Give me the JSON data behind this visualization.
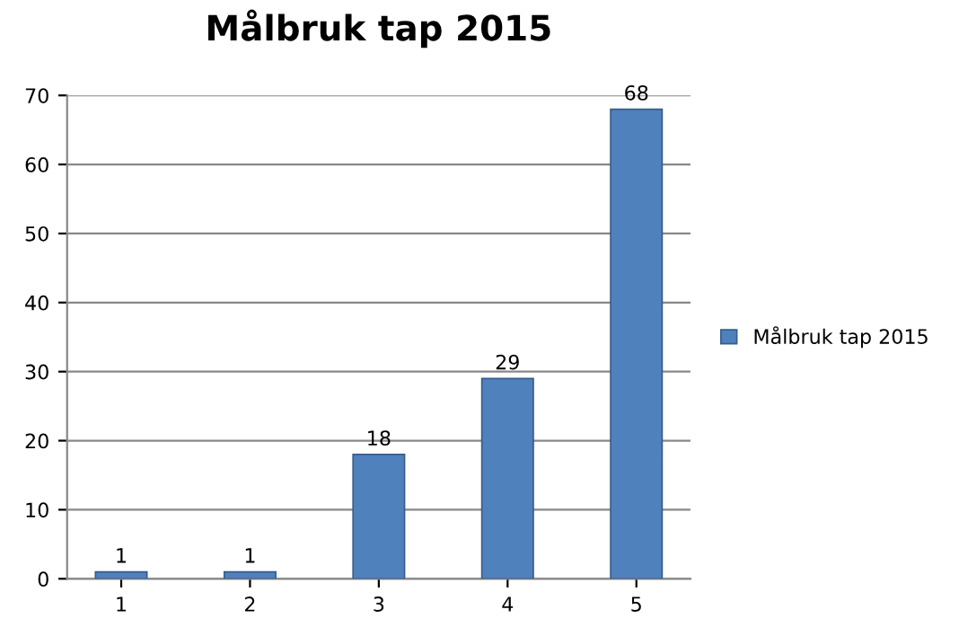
{
  "chart_data": {
    "type": "bar",
    "title": "Målbruk tap 2015",
    "categories": [
      "1",
      "2",
      "3",
      "4",
      "5"
    ],
    "series": [
      {
        "name": "Målbruk tap 2015",
        "color": "#4f81bd",
        "values": [
          1,
          1,
          18,
          29,
          68
        ]
      }
    ],
    "ylim": [
      0,
      70
    ],
    "yticks": [
      0,
      10,
      20,
      30,
      40,
      50,
      60,
      70
    ],
    "grid": "y",
    "legend": "right",
    "data_labels": true
  }
}
